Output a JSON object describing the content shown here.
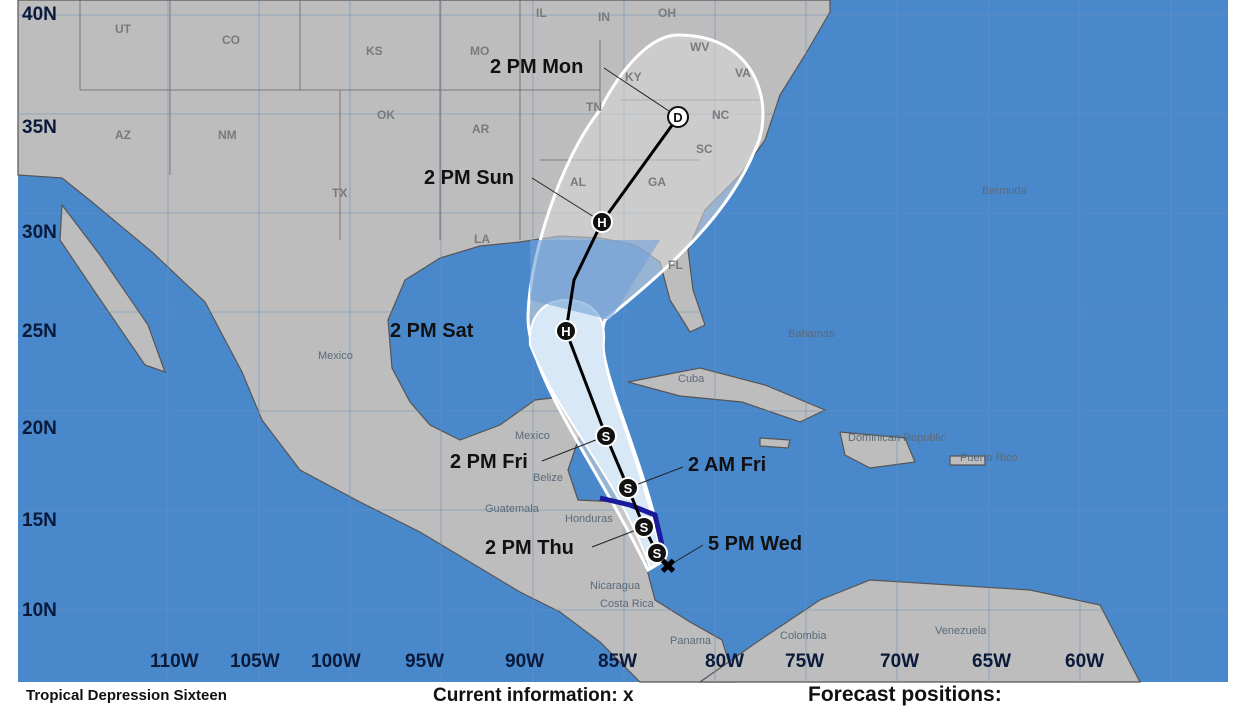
{
  "colors": {
    "ocean": "#4a88cc",
    "land": "#bdbdbd",
    "cone_white": "#ffffff",
    "cone_light": "#d9e8f6",
    "warning": "#1a1a9a",
    "track": "#000000"
  },
  "lat_labels": [
    "40N",
    "35N",
    "30N",
    "25N",
    "20N",
    "15N",
    "10N"
  ],
  "lon_labels": [
    "110W",
    "105W",
    "100W",
    "95W",
    "90W",
    "85W",
    "80W",
    "75W",
    "70W",
    "65W",
    "60W"
  ],
  "forecast_labels": [
    "2 PM Mon",
    "2 PM Sun",
    "2 PM Sat",
    "2 PM Fri",
    "2 AM Fri",
    "2 PM Thu",
    "5 PM Wed"
  ],
  "track_markers": [
    "D",
    "H",
    "H",
    "S",
    "S",
    "S",
    "S"
  ],
  "states": [
    "UT",
    "CO",
    "KS",
    "MO",
    "IL",
    "IN",
    "OH",
    "AZ",
    "NM",
    "OK",
    "AR",
    "TN",
    "KY",
    "WV",
    "VA",
    "NC",
    "SC",
    "GA",
    "AL",
    "TX",
    "LA",
    "FL"
  ],
  "places": [
    "Mexico",
    "Bermuda",
    "Bahamas",
    "Cuba",
    "Dominican Republic",
    "Puerto Rico",
    "Mexico",
    "Belize",
    "Guatemala",
    "Honduras",
    "Nicaragua",
    "Costa Rica",
    "Panama",
    "Colombia",
    "Venezuela"
  ],
  "bottom": {
    "status": "Tropical Depression Sixteen",
    "current": "Current information: x",
    "forecast": "Forecast positions:"
  }
}
